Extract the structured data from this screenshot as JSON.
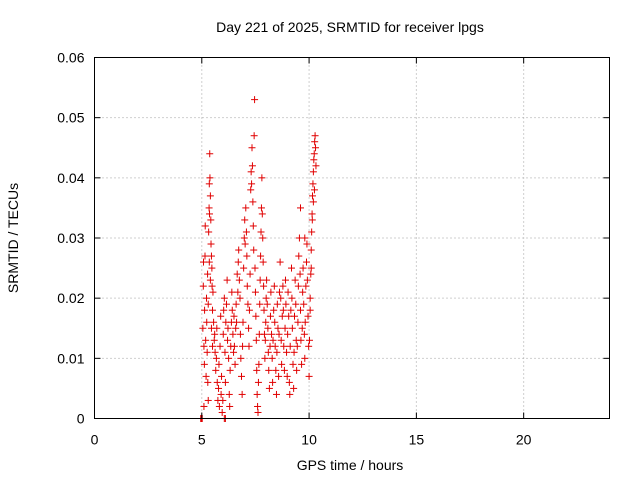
{
  "chart_data": {
    "type": "scatter",
    "title": "Day 221 of 2025, SRMTID for receiver lpgs",
    "xlabel": "GPS time / hours",
    "ylabel": "SRMTID / TECUs",
    "xlim": [
      0,
      24
    ],
    "ylim": [
      0,
      0.06
    ],
    "xticks": [
      0,
      5,
      10,
      15,
      20
    ],
    "xtick_labels": [
      "0",
      "5",
      "10",
      "15",
      "20"
    ],
    "yticks": [
      0,
      0.01,
      0.02,
      0.03,
      0.04,
      0.05,
      0.06
    ],
    "ytick_labels": [
      "0",
      "0.01",
      "0.02",
      "0.03",
      "0.04",
      "0.05",
      "0.06"
    ],
    "grid": true,
    "marker": "+",
    "color": "#e00000",
    "series": [
      {
        "name": "SRMTID",
        "points": [
          [
            4.95,
            0.0
          ],
          [
            4.97,
            0.0
          ],
          [
            5.0,
            0.0
          ],
          [
            5.02,
            0.0
          ],
          [
            6.05,
            0.0
          ],
          [
            6.1,
            0.0
          ],
          [
            5.05,
            0.015
          ],
          [
            5.07,
            0.022
          ],
          [
            5.08,
            0.026
          ],
          [
            5.1,
            0.012
          ],
          [
            5.12,
            0.009
          ],
          [
            5.13,
            0.018
          ],
          [
            5.15,
            0.027
          ],
          [
            5.16,
            0.032
          ],
          [
            5.18,
            0.013
          ],
          [
            5.2,
            0.007
          ],
          [
            5.22,
            0.02
          ],
          [
            5.23,
            0.016
          ],
          [
            5.25,
            0.011
          ],
          [
            5.27,
            0.024
          ],
          [
            5.28,
            0.006
          ],
          [
            5.3,
            0.019
          ],
          [
            5.1,
            0.002
          ],
          [
            5.3,
            0.003
          ],
          [
            5.32,
            0.031
          ],
          [
            5.34,
            0.035
          ],
          [
            5.35,
            0.039
          ],
          [
            5.36,
            0.034
          ],
          [
            5.37,
            0.044
          ],
          [
            5.38,
            0.04
          ],
          [
            5.4,
            0.037
          ],
          [
            5.42,
            0.033
          ],
          [
            5.43,
            0.029
          ],
          [
            5.45,
            0.027
          ],
          [
            5.47,
            0.025
          ],
          [
            5.48,
            0.022
          ],
          [
            5.5,
            0.018
          ],
          [
            5.52,
            0.021
          ],
          [
            5.35,
            0.026
          ],
          [
            5.4,
            0.023
          ],
          [
            5.45,
            0.015
          ],
          [
            5.5,
            0.012
          ],
          [
            5.55,
            0.016
          ],
          [
            5.58,
            0.013
          ],
          [
            5.6,
            0.014
          ],
          [
            5.62,
            0.011
          ],
          [
            5.65,
            0.008
          ],
          [
            5.68,
            0.01
          ],
          [
            5.7,
            0.015
          ],
          [
            5.72,
            0.006
          ],
          [
            5.75,
            0.003
          ],
          [
            5.78,
            0.005
          ],
          [
            5.8,
            0.009
          ],
          [
            5.82,
            0.002
          ],
          [
            5.85,
            0.012
          ],
          [
            5.88,
            0.017
          ],
          [
            5.9,
            0.004
          ],
          [
            5.92,
            0.007
          ],
          [
            5.95,
            0.001
          ],
          [
            5.98,
            0.003
          ],
          [
            6.0,
            0.014
          ],
          [
            6.02,
            0.018
          ],
          [
            6.05,
            0.02
          ],
          [
            6.08,
            0.011
          ],
          [
            6.1,
            0.006
          ],
          [
            6.12,
            0.016
          ],
          [
            6.15,
            0.019
          ],
          [
            6.18,
            0.023
          ],
          [
            6.2,
            0.013
          ],
          [
            6.22,
            0.015
          ],
          [
            6.25,
            0.01
          ],
          [
            6.28,
            0.004
          ],
          [
            6.3,
            0.002
          ],
          [
            6.32,
            0.008
          ],
          [
            6.35,
            0.012
          ],
          [
            6.38,
            0.016
          ],
          [
            6.4,
            0.021
          ],
          [
            6.42,
            0.018
          ],
          [
            6.45,
            0.014
          ],
          [
            6.48,
            0.011
          ],
          [
            6.5,
            0.017
          ],
          [
            6.52,
            0.012
          ],
          [
            6.55,
            0.009
          ],
          [
            6.58,
            0.015
          ],
          [
            6.6,
            0.019
          ],
          [
            6.62,
            0.016
          ],
          [
            6.65,
            0.024
          ],
          [
            6.68,
            0.021
          ],
          [
            6.7,
            0.026
          ],
          [
            6.72,
            0.028
          ],
          [
            6.75,
            0.023
          ],
          [
            6.78,
            0.02
          ],
          [
            6.8,
            0.014
          ],
          [
            6.82,
            0.01
          ],
          [
            6.85,
            0.007
          ],
          [
            6.88,
            0.004
          ],
          [
            6.9,
            0.012
          ],
          [
            6.92,
            0.016
          ],
          [
            6.95,
            0.025
          ],
          [
            6.98,
            0.03
          ],
          [
            7.0,
            0.033
          ],
          [
            7.02,
            0.029
          ],
          [
            7.05,
            0.035
          ],
          [
            7.08,
            0.031
          ],
          [
            7.1,
            0.027
          ],
          [
            7.12,
            0.022
          ],
          [
            7.15,
            0.019
          ],
          [
            7.18,
            0.015
          ],
          [
            7.2,
            0.012
          ],
          [
            7.22,
            0.018
          ],
          [
            7.25,
            0.024
          ],
          [
            7.28,
            0.038
          ],
          [
            7.3,
            0.041
          ],
          [
            7.32,
            0.039
          ],
          [
            7.34,
            0.045
          ],
          [
            7.36,
            0.042
          ],
          [
            7.38,
            0.036
          ],
          [
            7.4,
            0.032
          ],
          [
            7.42,
            0.028
          ],
          [
            7.44,
            0.047
          ],
          [
            7.46,
            0.053
          ],
          [
            7.48,
            0.025
          ],
          [
            7.5,
            0.021
          ],
          [
            7.52,
            0.017
          ],
          [
            7.54,
            0.013
          ],
          [
            7.56,
            0.008
          ],
          [
            7.58,
            0.004
          ],
          [
            7.6,
            0.002
          ],
          [
            7.62,
            0.001
          ],
          [
            7.64,
            0.006
          ],
          [
            7.66,
            0.009
          ],
          [
            7.68,
            0.014
          ],
          [
            7.7,
            0.019
          ],
          [
            7.72,
            0.023
          ],
          [
            7.74,
            0.027
          ],
          [
            7.76,
            0.031
          ],
          [
            7.78,
            0.035
          ],
          [
            7.8,
            0.04
          ],
          [
            7.82,
            0.034
          ],
          [
            7.84,
            0.03
          ],
          [
            7.86,
            0.026
          ],
          [
            7.88,
            0.022
          ],
          [
            7.9,
            0.018
          ],
          [
            7.92,
            0.014
          ],
          [
            7.94,
            0.01
          ],
          [
            7.96,
            0.013
          ],
          [
            7.98,
            0.016
          ],
          [
            8.0,
            0.02
          ],
          [
            8.02,
            0.023
          ],
          [
            8.05,
            0.019
          ],
          [
            8.08,
            0.015
          ],
          [
            8.1,
            0.011
          ],
          [
            8.12,
            0.008
          ],
          [
            8.15,
            0.005
          ],
          [
            8.18,
            0.012
          ],
          [
            8.2,
            0.017
          ],
          [
            8.22,
            0.021
          ],
          [
            8.25,
            0.014
          ],
          [
            8.28,
            0.01
          ],
          [
            8.3,
            0.006
          ],
          [
            8.32,
            0.013
          ],
          [
            8.35,
            0.018
          ],
          [
            8.38,
            0.022
          ],
          [
            8.4,
            0.016
          ],
          [
            8.42,
            0.012
          ],
          [
            8.45,
            0.008
          ],
          [
            8.48,
            0.004
          ],
          [
            8.5,
            0.011
          ],
          [
            8.52,
            0.019
          ],
          [
            8.55,
            0.015
          ],
          [
            8.58,
            0.007
          ],
          [
            8.6,
            0.014
          ],
          [
            8.62,
            0.021
          ],
          [
            8.65,
            0.026
          ],
          [
            8.68,
            0.02
          ],
          [
            8.7,
            0.013
          ],
          [
            8.72,
            0.009
          ],
          [
            8.75,
            0.017
          ],
          [
            8.78,
            0.022
          ],
          [
            8.8,
            0.018
          ],
          [
            8.82,
            0.012
          ],
          [
            8.85,
            0.008
          ],
          [
            8.88,
            0.015
          ],
          [
            8.9,
            0.023
          ],
          [
            8.92,
            0.019
          ],
          [
            8.95,
            0.011
          ],
          [
            8.98,
            0.007
          ],
          [
            9.0,
            0.014
          ],
          [
            9.02,
            0.021
          ],
          [
            9.05,
            0.017
          ],
          [
            9.08,
            0.006
          ],
          [
            9.1,
            0.004
          ],
          [
            9.12,
            0.012
          ],
          [
            9.15,
            0.018
          ],
          [
            9.18,
            0.025
          ],
          [
            9.2,
            0.02
          ],
          [
            9.22,
            0.015
          ],
          [
            9.25,
            0.009
          ],
          [
            9.28,
            0.005
          ],
          [
            9.3,
            0.011
          ],
          [
            9.32,
            0.017
          ],
          [
            9.35,
            0.023
          ],
          [
            9.38,
            0.019
          ],
          [
            9.4,
            0.013
          ],
          [
            9.42,
            0.008
          ],
          [
            9.45,
            0.012
          ],
          [
            9.48,
            0.016
          ],
          [
            9.5,
            0.022
          ],
          [
            9.52,
            0.027
          ],
          [
            9.55,
            0.03
          ],
          [
            9.58,
            0.024
          ],
          [
            9.6,
            0.018
          ],
          [
            9.62,
            0.013
          ],
          [
            9.65,
            0.009
          ],
          [
            9.68,
            0.015
          ],
          [
            9.7,
            0.021
          ],
          [
            9.72,
            0.025
          ],
          [
            9.75,
            0.019
          ],
          [
            9.78,
            0.014
          ],
          [
            9.8,
            0.01
          ],
          [
            9.82,
            0.016
          ],
          [
            9.85,
            0.022
          ],
          [
            9.88,
            0.026
          ],
          [
            9.9,
            0.029
          ],
          [
            9.92,
            0.023
          ],
          [
            9.95,
            0.017
          ],
          [
            9.98,
            0.012
          ],
          [
            10.0,
            0.007
          ],
          [
            10.02,
            0.013
          ],
          [
            10.05,
            0.018
          ],
          [
            10.08,
            0.024
          ],
          [
            10.1,
            0.028
          ],
          [
            10.12,
            0.031
          ],
          [
            10.14,
            0.034
          ],
          [
            10.16,
            0.037
          ],
          [
            10.18,
            0.039
          ],
          [
            10.2,
            0.041
          ],
          [
            10.22,
            0.043
          ],
          [
            10.24,
            0.044
          ],
          [
            10.26,
            0.046
          ],
          [
            10.28,
            0.047
          ],
          [
            10.3,
            0.045
          ],
          [
            10.32,
            0.042
          ],
          [
            10.2,
            0.036
          ],
          [
            10.25,
            0.038
          ],
          [
            10.1,
            0.025
          ],
          [
            10.05,
            0.02
          ],
          [
            10.15,
            0.033
          ],
          [
            9.6,
            0.035
          ],
          [
            9.8,
            0.03
          ]
        ]
      }
    ]
  }
}
